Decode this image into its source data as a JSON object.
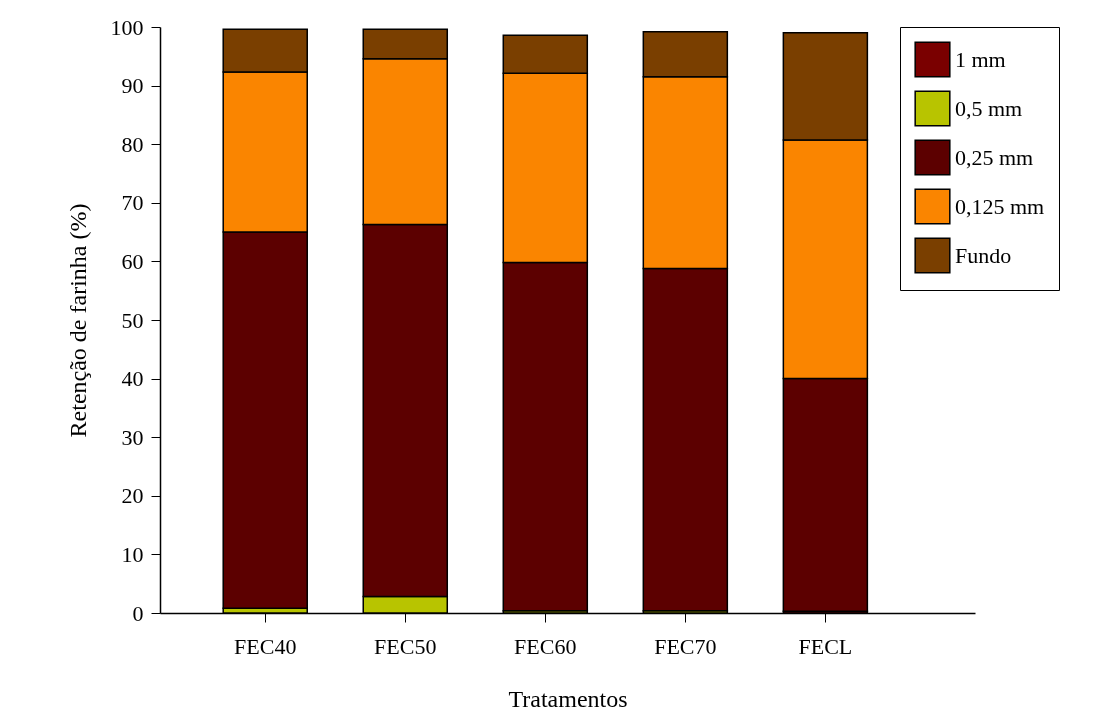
{
  "chart_data": {
    "type": "bar",
    "stacked": true,
    "xlabel": "Tratamentos",
    "ylabel": "Retenção de farinha (%)",
    "categories": [
      "FEC40",
      "FEC50",
      "FEC60",
      "FEC70",
      "FECL"
    ],
    "series": [
      {
        "name": "1 mm",
        "color": "#7a0000",
        "values": [
          0,
          0,
          0,
          0,
          0.3
        ]
      },
      {
        "name": "0,5 mm",
        "color": "#b8c400",
        "values": [
          0.8,
          2.8,
          0.4,
          0.4,
          0
        ]
      },
      {
        "name": "0,25 mm",
        "color": "#5c0000",
        "values": [
          64.2,
          63.5,
          59.4,
          58.4,
          39.7
        ]
      },
      {
        "name": "0,125 mm",
        "color": "#fa8500",
        "values": [
          27.3,
          28.3,
          32.3,
          32.7,
          40.7
        ]
      },
      {
        "name": "Fundo",
        "color": "#7a3f00",
        "values": [
          7.3,
          5.0,
          6.5,
          7.7,
          18.3
        ]
      }
    ],
    "ylim": [
      0,
      100
    ],
    "yticks": [
      0,
      10,
      20,
      30,
      40,
      50,
      60,
      70,
      80,
      90,
      100
    ],
    "grid": false,
    "legend": "top right"
  }
}
